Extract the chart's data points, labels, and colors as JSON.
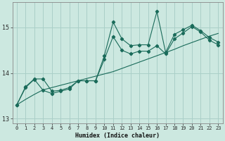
{
  "xlabel": "Humidex (Indice chaleur)",
  "bg_color": "#cce8e0",
  "grid_color": "#aacfc8",
  "line_color": "#1a6b5a",
  "xlim": [
    -0.5,
    23.5
  ],
  "ylim": [
    12.9,
    15.55
  ],
  "yticks": [
    13,
    14,
    15
  ],
  "xticks": [
    0,
    1,
    2,
    3,
    4,
    5,
    6,
    7,
    8,
    9,
    10,
    11,
    12,
    13,
    14,
    15,
    16,
    17,
    18,
    19,
    20,
    21,
    22,
    23
  ],
  "series_upper": [
    13.3,
    13.7,
    13.87,
    13.87,
    13.6,
    13.62,
    13.68,
    13.83,
    13.83,
    13.83,
    14.38,
    15.12,
    14.75,
    14.6,
    14.62,
    14.62,
    15.35,
    14.45,
    14.85,
    14.95,
    15.05,
    14.93,
    14.78,
    14.68
  ],
  "series_lower": [
    13.3,
    13.68,
    13.86,
    13.62,
    13.55,
    13.6,
    13.65,
    13.83,
    13.83,
    13.83,
    14.3,
    14.8,
    14.5,
    14.42,
    14.48,
    14.48,
    14.6,
    14.42,
    14.75,
    14.88,
    15.02,
    14.9,
    14.72,
    14.62
  ],
  "series_trend": [
    13.3,
    13.42,
    13.53,
    13.63,
    13.68,
    13.73,
    13.78,
    13.83,
    13.88,
    13.93,
    13.98,
    14.03,
    14.1,
    14.17,
    14.24,
    14.31,
    14.38,
    14.45,
    14.52,
    14.6,
    14.67,
    14.74,
    14.81,
    14.87
  ]
}
